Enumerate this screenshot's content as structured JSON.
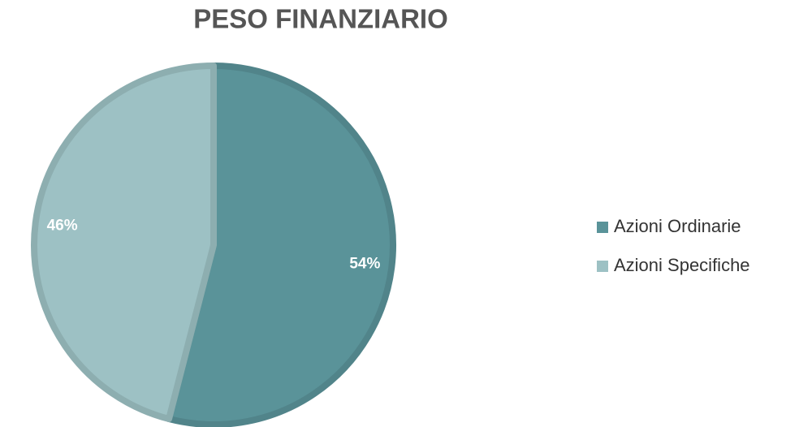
{
  "chart_data": {
    "type": "pie",
    "title": "PESO FINANZIARIO",
    "categories": [
      "Azioni Ordinarie",
      "Azioni Specifiche"
    ],
    "values": [
      54,
      46
    ],
    "value_labels": [
      "54%",
      "46%"
    ],
    "colors": [
      "#5a9399",
      "#9dc1c4"
    ],
    "legend": "right"
  }
}
